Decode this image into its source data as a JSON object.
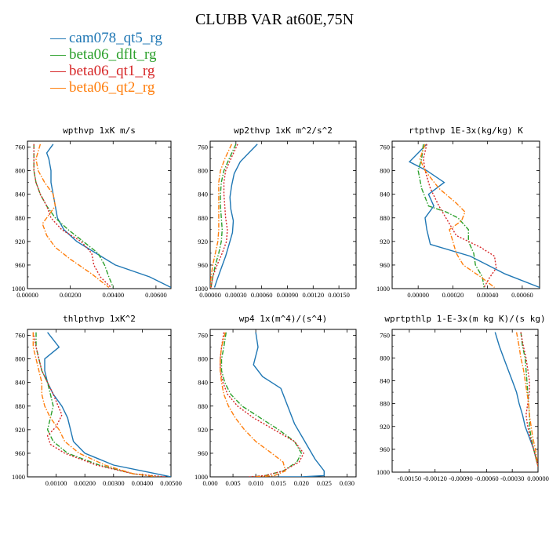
{
  "title": "CLUBB VAR at60E,75N",
  "legend": [
    {
      "label": "cam078_qt5_rg",
      "color": "#1f77b4",
      "dash": "solid"
    },
    {
      "label": "beta06_dflt_rg",
      "color": "#2ca02c",
      "dash": "dashdot"
    },
    {
      "label": "beta06_qt1_rg",
      "color": "#d62728",
      "dash": "dotted"
    },
    {
      "label": "beta06_qt2_rg",
      "color": "#ff7f0e",
      "dash": "dashdot"
    }
  ],
  "chart_data": [
    {
      "type": "line",
      "title": "wpthvp  1xK m/s",
      "xlim": [
        0,
        0.0067
      ],
      "ylim": [
        1000,
        750
      ],
      "xticks": [
        0,
        0.002,
        0.004,
        0.006
      ],
      "xticklabels": [
        "0.00000",
        "0.00200",
        "0.00400",
        "0.00600"
      ],
      "yticks": [
        760,
        800,
        840,
        880,
        920,
        960,
        1000
      ],
      "series": [
        {
          "name": "cam078_qt5_rg",
          "x": [
            0.0012,
            0.0009,
            0.001,
            0.0011,
            0.0011,
            0.0012,
            0.0013,
            0.0014,
            0.0017,
            0.0023,
            0.0032,
            0.0041,
            0.0057,
            0.0067
          ],
          "y": [
            755,
            770,
            780,
            800,
            820,
            840,
            860,
            880,
            900,
            920,
            940,
            960,
            980,
            998
          ]
        },
        {
          "name": "beta06_dflt_rg",
          "x": [
            0.0003,
            0.0003,
            0.0003,
            0.0004,
            0.0006,
            0.0009,
            0.0013,
            0.0019,
            0.0026,
            0.0033,
            0.0036,
            0.0038,
            0.004
          ],
          "y": [
            755,
            780,
            800,
            820,
            840,
            860,
            880,
            900,
            920,
            940,
            960,
            980,
            998
          ]
        },
        {
          "name": "beta06_qt1_rg",
          "x": [
            0.0003,
            0.0003,
            0.0003,
            0.0004,
            0.0006,
            0.0009,
            0.0011,
            0.0016,
            0.0025,
            0.003,
            0.0031,
            0.0034,
            0.0039
          ],
          "y": [
            755,
            780,
            800,
            820,
            840,
            860,
            880,
            900,
            920,
            940,
            960,
            980,
            998
          ]
        },
        {
          "name": "beta06_qt2_rg",
          "x": [
            0.0006,
            0.0004,
            0.0005,
            0.0008,
            0.0012,
            0.0013,
            0.0011,
            0.0007,
            0.0009,
            0.0013,
            0.002,
            0.003,
            0.0038
          ],
          "y": [
            755,
            780,
            800,
            820,
            840,
            860,
            870,
            890,
            910,
            930,
            950,
            975,
            998
          ]
        }
      ]
    },
    {
      "type": "line",
      "title": "wp2thvp  1xK m^2/s^2",
      "xlim": [
        0,
        0.0017
      ],
      "ylim": [
        1000,
        750
      ],
      "xticks": [
        0,
        0.0003,
        0.0006,
        0.0009,
        0.0012,
        0.0015
      ],
      "xticklabels": [
        "0.00000",
        "0.00030",
        "0.00060",
        "0.00090",
        "0.00120",
        "0.00150"
      ],
      "yticks": [
        760,
        800,
        840,
        880,
        920,
        960,
        1000
      ],
      "series": [
        {
          "name": "cam078_qt5_rg",
          "x": [
            0.00055,
            0.00045,
            0.00035,
            0.00028,
            0.00025,
            0.00023,
            0.00024,
            0.00027,
            0.00026,
            0.00022,
            0.00018,
            0.00013,
            8e-05,
            5e-05
          ],
          "y": [
            755,
            770,
            785,
            805,
            825,
            845,
            865,
            885,
            905,
            925,
            945,
            965,
            985,
            998
          ]
        },
        {
          "name": "beta06_dflt_rg",
          "x": [
            0.0003,
            0.00022,
            0.00016,
            0.00013,
            0.00012,
            0.00012,
            0.00013,
            0.00014,
            0.00013,
            0.0001,
            6e-05,
            3e-05,
            1e-05
          ],
          "y": [
            755,
            780,
            800,
            820,
            840,
            860,
            880,
            900,
            920,
            940,
            960,
            980,
            998
          ]
        },
        {
          "name": "beta06_qt1_rg",
          "x": [
            0.00032,
            0.00024,
            0.00018,
            0.00016,
            0.00016,
            0.00017,
            0.00018,
            0.0002,
            0.00019,
            0.00014,
            8e-05,
            3e-05,
            1e-05
          ],
          "y": [
            755,
            780,
            800,
            820,
            840,
            860,
            880,
            900,
            920,
            940,
            960,
            980,
            998
          ]
        },
        {
          "name": "beta06_qt2_rg",
          "x": [
            0.00025,
            0.00017,
            0.00012,
            0.0001,
            0.0001,
            0.0001,
            0.0001,
            0.0001,
            9e-05,
            6e-05,
            3e-05,
            1e-05,
            0.0
          ],
          "y": [
            755,
            780,
            800,
            820,
            840,
            860,
            880,
            900,
            920,
            940,
            960,
            980,
            998
          ]
        }
      ]
    },
    {
      "type": "line",
      "title": "rtpthvp  1E-3x(kg/kg) K",
      "xlim": [
        -0.00015,
        0.0007
      ],
      "ylim": [
        1000,
        750
      ],
      "xticks": [
        0,
        0.0002,
        0.0004,
        0.0006
      ],
      "xticklabels": [
        "0.00000",
        "0.00020",
        "0.00040",
        "0.00060"
      ],
      "yticks": [
        760,
        800,
        840,
        880,
        920,
        960,
        1000
      ],
      "series": [
        {
          "name": "cam078_qt5_rg",
          "x": [
            5e-05,
            -5e-05,
            5e-05,
            0.00015,
            6e-05,
            9e-05,
            4e-05,
            5e-05,
            7e-05,
            0.0003,
            0.0004,
            0.0005,
            0.0007
          ],
          "y": [
            755,
            785,
            800,
            820,
            840,
            860,
            880,
            900,
            925,
            945,
            960,
            975,
            998
          ]
        },
        {
          "name": "beta06_dflt_rg",
          "x": [
            3e-05,
            2e-05,
            0.0,
            2e-05,
            6e-05,
            0.00016,
            0.00023,
            0.00029,
            0.00029,
            0.00032,
            0.00033,
            0.00037,
            0.00038
          ],
          "y": [
            755,
            780,
            800,
            830,
            860,
            870,
            880,
            900,
            920,
            940,
            960,
            980,
            998
          ]
        },
        {
          "name": "beta06_qt1_rg",
          "x": [
            5e-05,
            3e-05,
            4e-05,
            7e-05,
            0.00012,
            0.00016,
            0.00019,
            0.00022,
            0.00036,
            0.00044,
            0.00045,
            0.00041,
            0.00038
          ],
          "y": [
            755,
            780,
            800,
            830,
            860,
            880,
            895,
            910,
            930,
            945,
            965,
            982,
            998
          ]
        },
        {
          "name": "beta06_qt2_rg",
          "x": [
            4e-05,
            1e-05,
            4e-05,
            0.00012,
            0.00022,
            0.00027,
            0.00025,
            0.00018,
            0.0002,
            0.00022,
            0.00026,
            0.00036,
            0.00044
          ],
          "y": [
            755,
            780,
            800,
            830,
            855,
            870,
            885,
            900,
            920,
            940,
            960,
            980,
            998
          ]
        }
      ]
    },
    {
      "type": "line",
      "title": "thlpthvp  1xK^2",
      "xlim": [
        0,
        0.005
      ],
      "ylim": [
        1000,
        750
      ],
      "xticks": [
        0.001,
        0.002,
        0.003,
        0.004,
        0.005
      ],
      "xticklabels": [
        "0.00100",
        "0.00200",
        "0.00300",
        "0.00400",
        "0.00500"
      ],
      "yticks": [
        760,
        800,
        840,
        880,
        920,
        960,
        1000
      ],
      "series": [
        {
          "name": "cam078_qt5_rg",
          "x": [
            0.0007,
            0.0011,
            0.0006,
            0.0006,
            0.0007,
            0.0009,
            0.0012,
            0.0014,
            0.0015,
            0.0016,
            0.002,
            0.003,
            0.0045,
            0.005
          ],
          "y": [
            755,
            780,
            800,
            820,
            840,
            860,
            880,
            900,
            920,
            940,
            960,
            980,
            995,
            1000
          ]
        },
        {
          "name": "beta06_dflt_rg",
          "x": [
            0.0003,
            0.0003,
            0.0004,
            0.0005,
            0.0007,
            0.0008,
            0.0009,
            0.0008,
            0.0007,
            0.0009,
            0.0014,
            0.0025,
            0.0037,
            0.0046
          ],
          "y": [
            755,
            780,
            800,
            820,
            840,
            860,
            880,
            900,
            920,
            940,
            960,
            980,
            995,
            1000
          ]
        },
        {
          "name": "beta06_qt1_rg",
          "x": [
            0.0002,
            0.0003,
            0.0004,
            0.0005,
            0.0007,
            0.0009,
            0.0012,
            0.001,
            0.0007,
            0.0008,
            0.0013,
            0.0024,
            0.0037,
            0.0048
          ],
          "y": [
            755,
            780,
            800,
            820,
            840,
            860,
            895,
            915,
            930,
            945,
            960,
            980,
            995,
            1000
          ]
        },
        {
          "name": "beta06_qt2_rg",
          "x": [
            0.0002,
            0.0002,
            0.0003,
            0.0004,
            0.0005,
            0.0005,
            0.0006,
            0.0008,
            0.0011,
            0.0013,
            0.0018,
            0.0027,
            0.0037,
            0.0045
          ],
          "y": [
            755,
            780,
            800,
            820,
            840,
            860,
            880,
            900,
            920,
            940,
            960,
            980,
            995,
            1000
          ]
        }
      ]
    },
    {
      "type": "line",
      "title": "wp4  1x(m^4)/(s^4)",
      "xlim": [
        0,
        0.032
      ],
      "ylim": [
        1000,
        750
      ],
      "xticks": [
        0,
        0.005,
        0.01,
        0.015,
        0.02,
        0.025,
        0.03
      ],
      "xticklabels": [
        "0.000",
        "0.005",
        "0.010",
        "0.015",
        "0.020",
        "0.025",
        "0.030"
      ],
      "yticks": [
        760,
        800,
        840,
        880,
        920,
        960,
        1000
      ],
      "series": [
        {
          "name": "cam078_qt5_rg",
          "x": [
            0.01,
            0.0105,
            0.0095,
            0.0115,
            0.0135,
            0.0155,
            0.0165,
            0.0175,
            0.0185,
            0.02,
            0.0215,
            0.023,
            0.025,
            0.025,
            0.02,
            0.015
          ],
          "y": [
            755,
            780,
            810,
            830,
            840,
            850,
            870,
            890,
            910,
            930,
            950,
            970,
            990,
            998,
            1000,
            1000
          ]
        },
        {
          "name": "beta06_dflt_rg",
          "x": [
            0.0035,
            0.003,
            0.0025,
            0.0025,
            0.0032,
            0.0045,
            0.007,
            0.011,
            0.015,
            0.0185,
            0.02,
            0.019,
            0.016,
            0.012,
            0.009
          ],
          "y": [
            755,
            780,
            800,
            820,
            840,
            860,
            880,
            900,
            920,
            940,
            960,
            975,
            990,
            998,
            1000
          ]
        },
        {
          "name": "beta06_qt1_rg",
          "x": [
            0.003,
            0.0025,
            0.0022,
            0.0022,
            0.0028,
            0.0038,
            0.006,
            0.0095,
            0.014,
            0.0185,
            0.0205,
            0.0195,
            0.016,
            0.012,
            0.0085
          ],
          "y": [
            755,
            780,
            800,
            820,
            840,
            860,
            880,
            900,
            920,
            940,
            960,
            975,
            990,
            998,
            1000
          ]
        },
        {
          "name": "beta06_qt2_rg",
          "x": [
            0.0033,
            0.0025,
            0.0022,
            0.0022,
            0.0025,
            0.003,
            0.004,
            0.0055,
            0.0075,
            0.01,
            0.0135,
            0.016,
            0.0165,
            0.014,
            0.01
          ],
          "y": [
            755,
            780,
            800,
            820,
            840,
            860,
            880,
            900,
            920,
            940,
            960,
            975,
            990,
            998,
            1000
          ]
        }
      ]
    },
    {
      "type": "line",
      "title": "wprtpthlp  1-E-3x(m kg K)/(s kg)",
      "xlim": [
        -0.0017,
        0.0
      ],
      "ylim": [
        1000,
        750
      ],
      "xticks": [
        -0.0015,
        -0.0012,
        -0.0009,
        -0.0006,
        -0.0003,
        0.0
      ],
      "xticklabels": [
        "-0.00150",
        "-0.00120",
        "-0.00090",
        "-0.00060",
        "-0.00030",
        "0.00000"
      ],
      "yticks": [
        760,
        800,
        840,
        880,
        920,
        960,
        1000
      ],
      "series": [
        {
          "name": "cam078_qt5_rg",
          "x": [
            -0.0005,
            -0.00045,
            -0.0004,
            -0.00035,
            -0.0003,
            -0.00025,
            -0.00022,
            -0.00018,
            -0.00015,
            -0.0001,
            -5e-05,
            0.0
          ],
          "y": [
            755,
            780,
            800,
            820,
            840,
            860,
            880,
            900,
            920,
            940,
            960,
            990
          ]
        },
        {
          "name": "beta06_dflt_rg",
          "x": [
            -0.0002,
            -0.00018,
            -0.00015,
            -0.00014,
            -0.00013,
            -0.00012,
            -0.00011,
            -0.0001,
            -0.0001,
            -8e-05,
            -5e-05,
            0.0
          ],
          "y": [
            755,
            780,
            800,
            820,
            840,
            860,
            880,
            900,
            920,
            940,
            960,
            990
          ]
        },
        {
          "name": "beta06_qt1_rg",
          "x": [
            -0.0002,
            -0.00017,
            -0.00014,
            -0.00012,
            -0.0001,
            -0.0001,
            -0.00012,
            -0.00014,
            -0.00012,
            -9e-05,
            -5e-05,
            0.0
          ],
          "y": [
            755,
            780,
            800,
            820,
            840,
            860,
            880,
            900,
            920,
            940,
            960,
            990
          ]
        },
        {
          "name": "beta06_qt2_rg",
          "x": [
            -0.00025,
            -0.00022,
            -0.0002,
            -0.00017,
            -0.00015,
            -0.00013,
            -0.00011,
            -0.0001,
            -8e-05,
            -6e-05,
            -3e-05,
            0.0
          ],
          "y": [
            755,
            780,
            800,
            820,
            840,
            860,
            880,
            900,
            920,
            940,
            960,
            990
          ]
        }
      ]
    }
  ]
}
